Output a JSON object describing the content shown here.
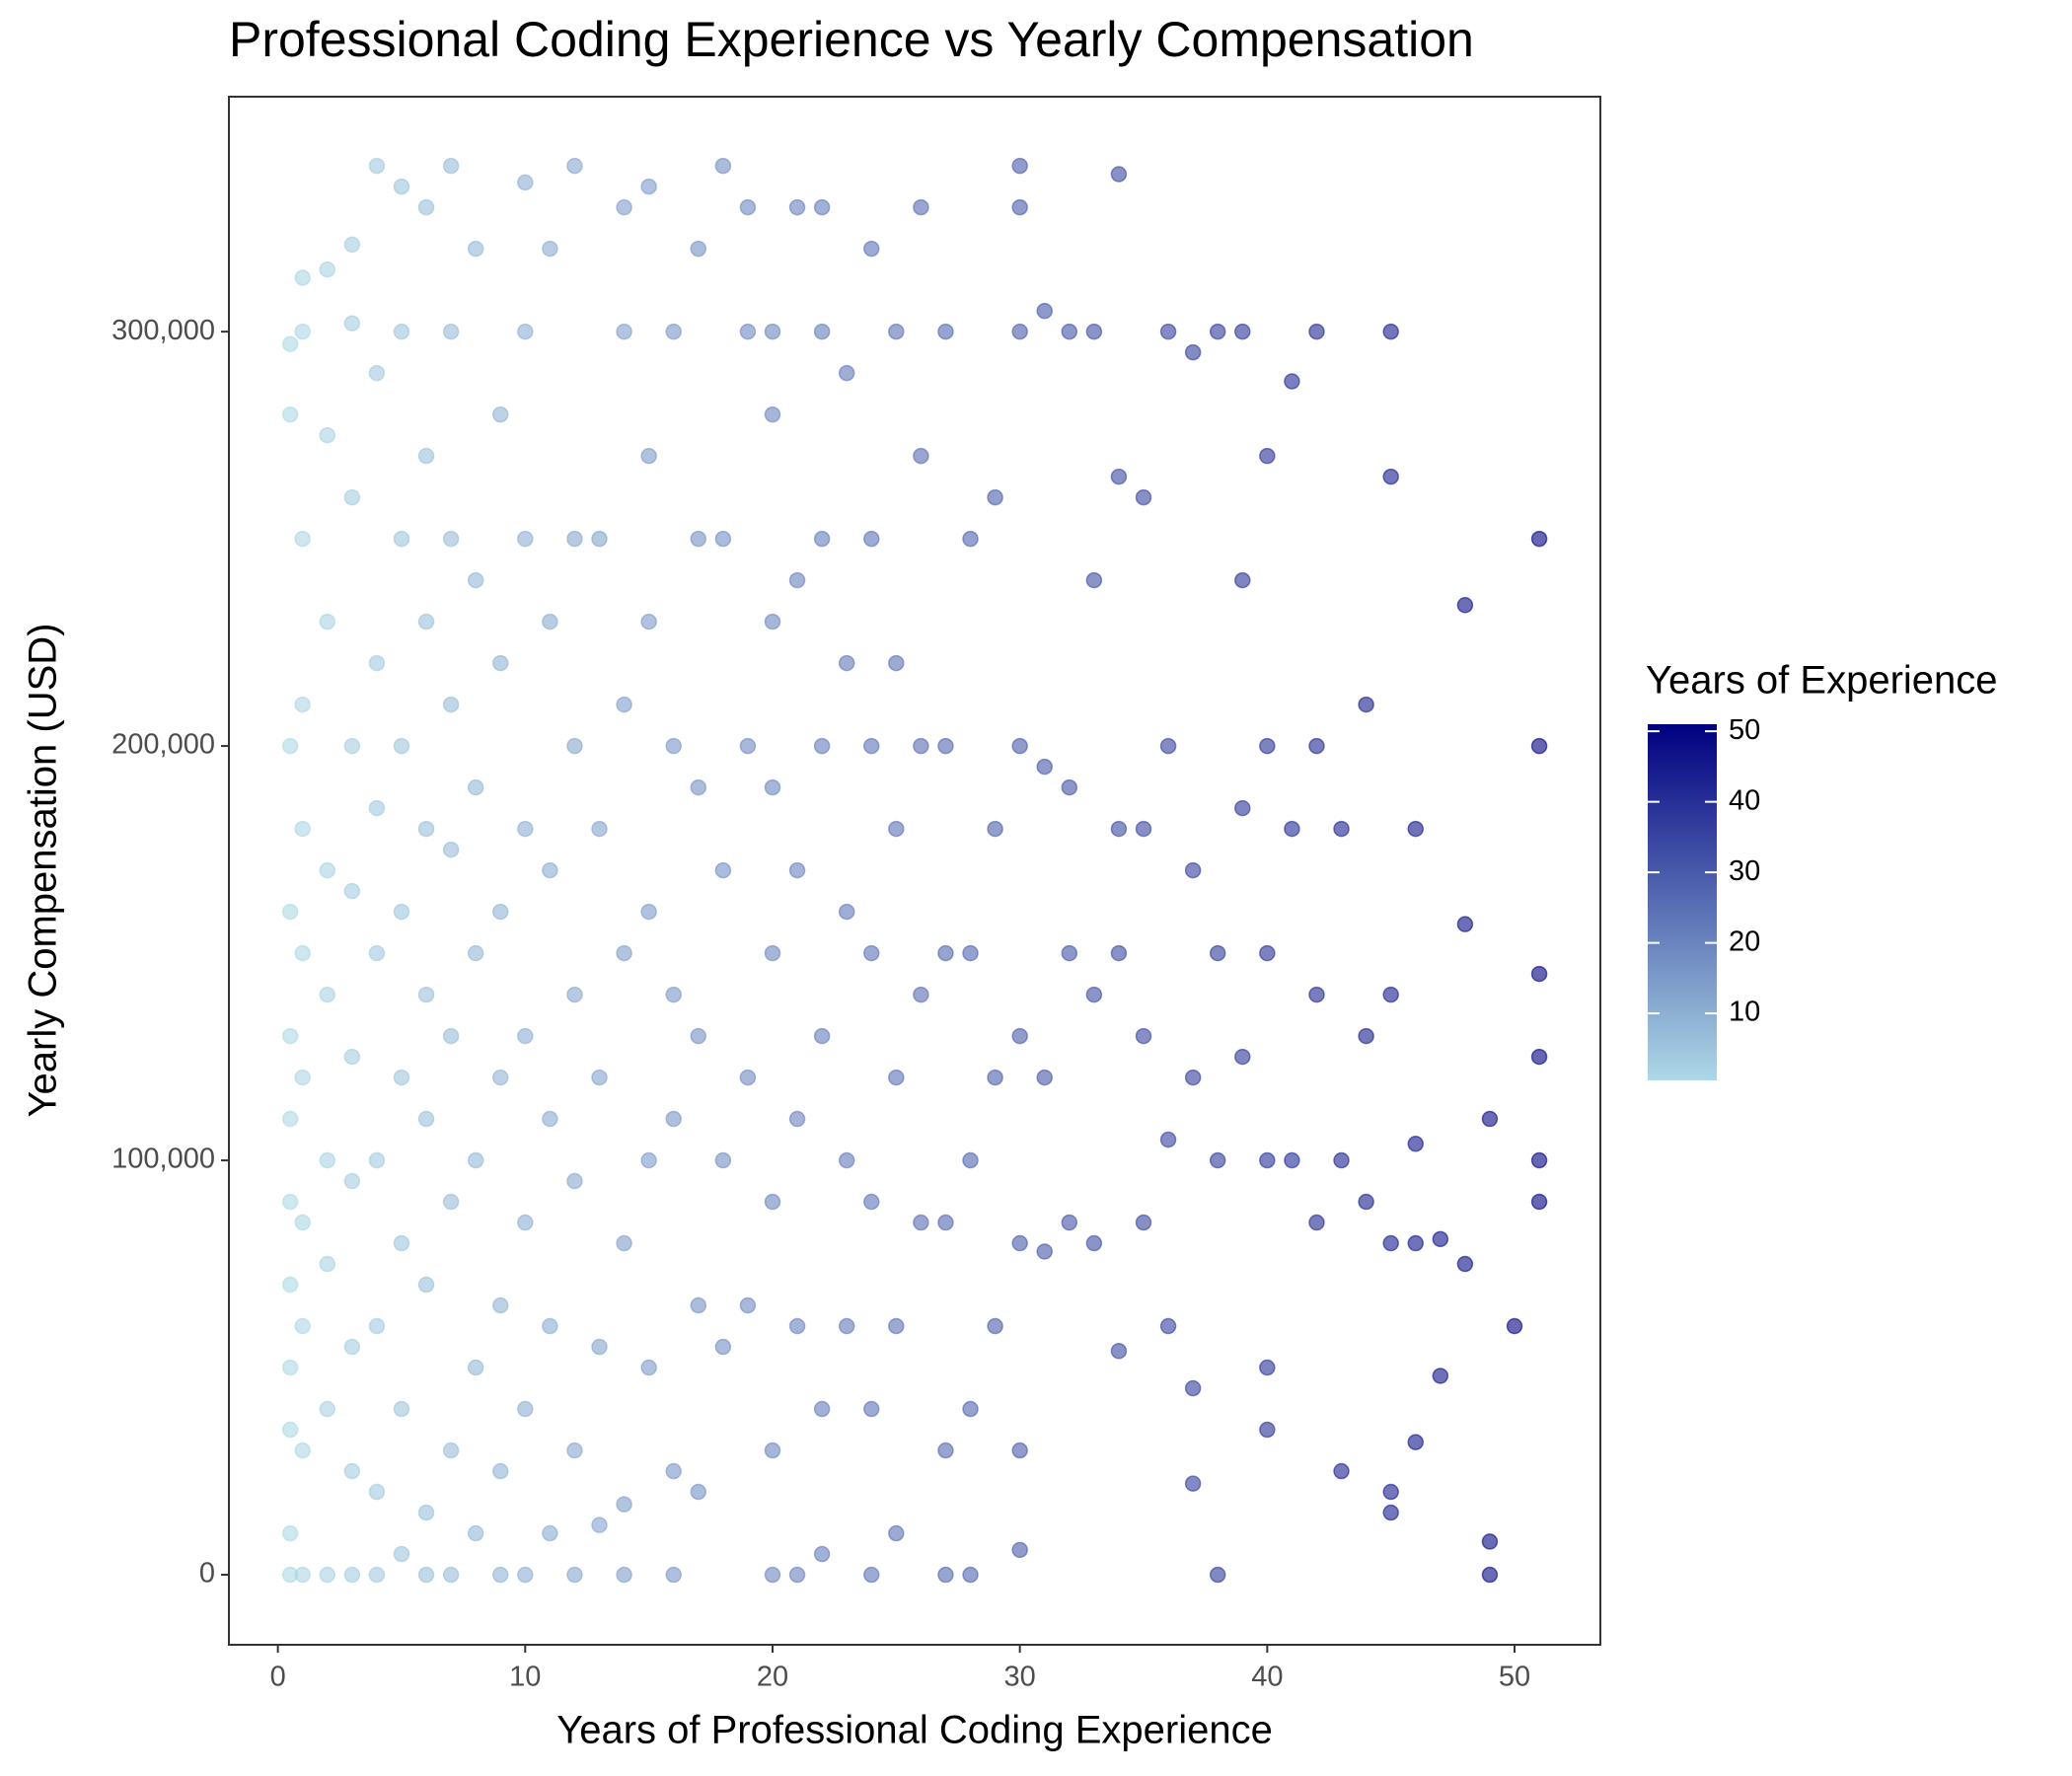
{
  "chart_data": {
    "type": "scatter",
    "title": "Professional Coding Experience vs Yearly Compensation",
    "x_label": "Years of Professional Coding Experience",
    "y_label": "Yearly Compensation (USD)",
    "xlim": [
      -1.98,
      53.47
    ],
    "ylim": [
      -16900,
      356700
    ],
    "xticks": [
      0,
      10,
      20,
      30,
      40,
      50
    ],
    "yticks": [
      0,
      {
        "value": 100000,
        "label": "100,000"
      },
      {
        "value": 200000,
        "label": "200,000"
      },
      {
        "value": 300000,
        "label": "300,000"
      }
    ],
    "colorbar": {
      "title": "Years of Experience",
      "low": "#add8e6",
      "high": "#000080",
      "limits": [
        0.5,
        51
      ],
      "ticks": [
        10,
        20,
        30,
        40,
        50
      ]
    },
    "opacity": 0.6,
    "x": [
      0.5,
      0.5,
      0.5,
      0.5,
      0.5,
      0.5,
      0.5,
      0.5,
      0.5,
      0.5,
      0.5,
      0.5,
      1,
      1,
      1,
      1,
      1,
      1,
      1,
      1,
      1,
      1,
      1,
      2,
      2,
      2,
      2,
      2,
      2,
      2,
      2,
      2,
      3,
      3,
      3,
      3,
      3,
      3,
      3,
      3,
      3,
      3,
      4,
      4,
      4,
      4,
      4,
      4,
      4,
      4,
      4,
      5,
      5,
      5,
      5,
      5,
      5,
      5,
      5,
      5,
      6,
      6,
      6,
      6,
      6,
      6,
      6,
      6,
      6,
      7,
      7,
      7,
      7,
      7,
      7,
      7,
      7,
      7,
      8,
      8,
      8,
      8,
      8,
      8,
      8,
      9,
      9,
      9,
      9,
      9,
      9,
      9,
      10,
      10,
      10,
      10,
      10,
      10,
      10,
      10,
      11,
      11,
      11,
      11,
      11,
      11,
      12,
      12,
      12,
      12,
      12,
      12,
      12,
      13,
      13,
      13,
      13,
      13,
      14,
      14,
      14,
      14,
      14,
      14,
      14,
      15,
      15,
      15,
      15,
      15,
      15,
      16,
      16,
      16,
      16,
      16,
      16,
      17,
      17,
      17,
      17,
      17,
      17,
      18,
      18,
      18,
      18,
      18,
      19,
      19,
      19,
      19,
      19,
      20,
      20,
      20,
      20,
      20,
      20,
      20,
      20,
      21,
      21,
      21,
      21,
      21,
      21,
      22,
      22,
      22,
      22,
      22,
      22,
      22,
      23,
      23,
      23,
      23,
      23,
      24,
      24,
      24,
      24,
      24,
      24,
      24,
      25,
      25,
      25,
      25,
      25,
      25,
      26,
      26,
      26,
      26,
      26,
      27,
      27,
      27,
      27,
      27,
      27,
      28,
      28,
      28,
      28,
      28,
      29,
      29,
      29,
      29,
      30,
      30,
      30,
      30,
      30,
      30,
      30,
      30,
      31,
      31,
      31,
      31,
      32,
      32,
      32,
      32,
      33,
      33,
      33,
      33,
      34,
      34,
      34,
      34,
      34,
      35,
      35,
      35,
      35,
      36,
      36,
      36,
      36,
      37,
      37,
      37,
      37,
      37,
      38,
      38,
      38,
      38,
      39,
      39,
      39,
      39,
      40,
      40,
      40,
      40,
      40,
      40,
      41,
      41,
      41,
      42,
      42,
      42,
      42,
      43,
      43,
      43,
      44,
      44,
      44,
      45,
      45,
      45,
      45,
      45,
      45,
      46,
      46,
      46,
      46,
      47,
      47,
      48,
      48,
      48,
      49,
      49,
      49,
      50,
      51,
      51,
      51,
      51,
      51,
      51
    ],
    "y": [
      0,
      10000,
      35000,
      50000,
      70000,
      90000,
      110000,
      130000,
      160000,
      200000,
      280000,
      297000,
      0,
      30000,
      60000,
      85000,
      120000,
      150000,
      180000,
      210000,
      250000,
      300000,
      313000,
      0,
      40000,
      75000,
      100000,
      140000,
      170000,
      230000,
      275000,
      315000,
      0,
      25000,
      55000,
      95000,
      125000,
      165000,
      200000,
      260000,
      302000,
      321000,
      0,
      20000,
      60000,
      100000,
      150000,
      185000,
      220000,
      290000,
      340000,
      5000,
      40000,
      80000,
      120000,
      160000,
      200000,
      250000,
      300000,
      335000,
      0,
      15000,
      70000,
      110000,
      140000,
      180000,
      230000,
      270000,
      330000,
      0,
      30000,
      90000,
      130000,
      175000,
      210000,
      250000,
      300000,
      340000,
      10000,
      50000,
      100000,
      150000,
      190000,
      240000,
      320000,
      0,
      25000,
      65000,
      120000,
      160000,
      220000,
      280000,
      0,
      40000,
      85000,
      130000,
      180000,
      250000,
      300000,
      336000,
      10000,
      60000,
      110000,
      170000,
      230000,
      320000,
      0,
      30000,
      95000,
      140000,
      200000,
      250000,
      340000,
      12000,
      55000,
      120000,
      180000,
      250000,
      0,
      17000,
      80000,
      150000,
      210000,
      300000,
      330000,
      50000,
      100000,
      160000,
      230000,
      270000,
      335000,
      0,
      25000,
      110000,
      140000,
      200000,
      300000,
      20000,
      65000,
      130000,
      190000,
      250000,
      320000,
      55000,
      100000,
      170000,
      250000,
      340000,
      65000,
      120000,
      200000,
      300000,
      330000,
      0,
      30000,
      90000,
      150000,
      190000,
      230000,
      280000,
      300000,
      0,
      60000,
      110000,
      170000,
      240000,
      330000,
      5000,
      40000,
      130000,
      200000,
      250000,
      300000,
      330000,
      60000,
      100000,
      160000,
      220000,
      290000,
      0,
      40000,
      90000,
      150000,
      200000,
      250000,
      320000,
      10000,
      60000,
      120000,
      180000,
      220000,
      300000,
      85000,
      140000,
      200000,
      270000,
      330000,
      0,
      30000,
      85000,
      150000,
      200000,
      300000,
      0,
      40000,
      100000,
      150000,
      250000,
      60000,
      120000,
      180000,
      260000,
      6000,
      30000,
      80000,
      130000,
      200000,
      300000,
      330000,
      340000,
      78000,
      120000,
      195000,
      305000,
      85000,
      150000,
      190000,
      300000,
      80000,
      140000,
      240000,
      300000,
      54000,
      150000,
      180000,
      265000,
      338000,
      85000,
      130000,
      180000,
      260000,
      60000,
      105000,
      200000,
      300000,
      22000,
      45000,
      120000,
      170000,
      295000,
      0,
      100000,
      150000,
      300000,
      125000,
      185000,
      240000,
      300000,
      35000,
      50000,
      100000,
      150000,
      200000,
      270000,
      100000,
      180000,
      288000,
      85000,
      140000,
      200000,
      300000,
      25000,
      100000,
      180000,
      90000,
      130000,
      210000,
      15000,
      20000,
      80000,
      140000,
      265000,
      300000,
      32000,
      80000,
      104000,
      180000,
      48000,
      81000,
      75000,
      157000,
      234000,
      0,
      8000,
      110000,
      60000,
      90000,
      100000,
      125000,
      145000,
      200000,
      250000
    ]
  }
}
